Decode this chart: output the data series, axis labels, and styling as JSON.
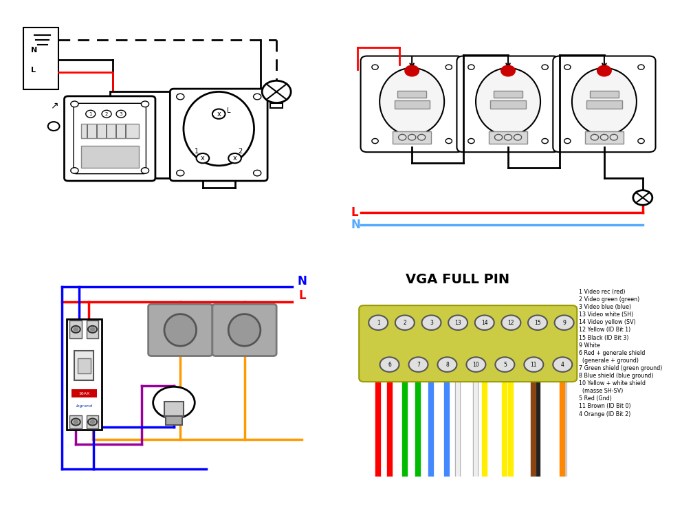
{
  "bg_color": "#ffffff",
  "q1": {
    "wire_l_color": "#ff0000",
    "wire_n_color": "#000000",
    "dashed_color": "#000000"
  },
  "q2": {
    "wire_L_color": "#ff0000",
    "wire_N_color": "#55aaff",
    "wire_black": "#000000"
  },
  "q3": {
    "wire_N_color": "#0000ff",
    "wire_L_color": "#ff0000",
    "wire_orange": "#ff9900",
    "wire_purple": "#990099"
  },
  "q4": {
    "title": "VGA FULL PIN",
    "connector_bg": "#cccc55",
    "pin_labels": [
      "1 Video rec (red)",
      "2 Video green (green)",
      "3 Video blue (blue)",
      "13 Video white (SH)",
      "14 Video yellow (SV)",
      "12 Yellow (ID Bit 1)",
      "15 Black (ID Bit 3)",
      "9 White",
      "6 Red + generale shield",
      "  (generale + ground)",
      "7 Green shield (green ground)",
      "8 Blue shield (blue ground)",
      "10 Yellow + white shield",
      "  (masse SH-SV)",
      "5 Red (Gnd)",
      "11 Brown (ID Bit 0)",
      "4 Orange (ID Bit 2)"
    ]
  }
}
